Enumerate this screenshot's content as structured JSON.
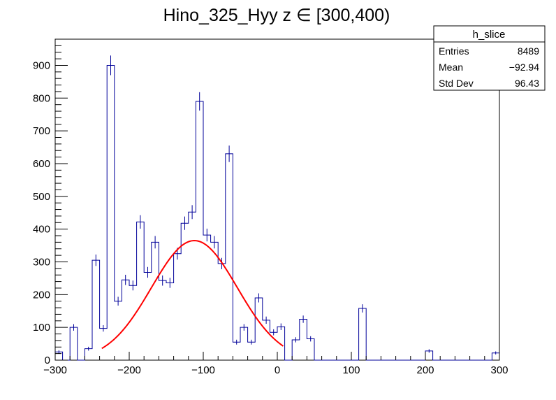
{
  "chart_data": {
    "type": "bar",
    "title": "Hino_325_Hyy z  ∈ [300,400)",
    "xlim": [
      -300,
      300
    ],
    "ylim": [
      0,
      980
    ],
    "bin_width": 10,
    "x_ticks": [
      -300,
      -200,
      -100,
      0,
      100,
      200,
      300
    ],
    "x_tick_labels": [
      "−300",
      "−200",
      "−100",
      "0",
      "100",
      "200",
      "300"
    ],
    "y_ticks": [
      0,
      100,
      200,
      300,
      400,
      500,
      600,
      700,
      800,
      900
    ],
    "y_tick_labels": [
      "0",
      "100",
      "200",
      "300",
      "400",
      "500",
      "600",
      "700",
      "800",
      "900"
    ],
    "grid": false,
    "histogram_color": "#000099",
    "fit_color": "#ff0000",
    "bins": [
      {
        "x": -295,
        "y": 25
      },
      {
        "x": -285,
        "y": 0
      },
      {
        "x": -275,
        "y": 100
      },
      {
        "x": -265,
        "y": 0
      },
      {
        "x": -255,
        "y": 35
      },
      {
        "x": -245,
        "y": 305
      },
      {
        "x": -235,
        "y": 97
      },
      {
        "x": -225,
        "y": 900
      },
      {
        "x": -215,
        "y": 180
      },
      {
        "x": -205,
        "y": 245
      },
      {
        "x": -195,
        "y": 228
      },
      {
        "x": -185,
        "y": 422
      },
      {
        "x": -175,
        "y": 268
      },
      {
        "x": -165,
        "y": 360
      },
      {
        "x": -155,
        "y": 243
      },
      {
        "x": -145,
        "y": 236
      },
      {
        "x": -135,
        "y": 325
      },
      {
        "x": -125,
        "y": 418
      },
      {
        "x": -115,
        "y": 452
      },
      {
        "x": -105,
        "y": 790
      },
      {
        "x": -95,
        "y": 382
      },
      {
        "x": -85,
        "y": 360
      },
      {
        "x": -75,
        "y": 295
      },
      {
        "x": -65,
        "y": 630
      },
      {
        "x": -55,
        "y": 55
      },
      {
        "x": -45,
        "y": 100
      },
      {
        "x": -35,
        "y": 55
      },
      {
        "x": -25,
        "y": 190
      },
      {
        "x": -15,
        "y": 122
      },
      {
        "x": -5,
        "y": 85
      },
      {
        "x": 5,
        "y": 102
      },
      {
        "x": 15,
        "y": 0
      },
      {
        "x": 25,
        "y": 62
      },
      {
        "x": 35,
        "y": 125
      },
      {
        "x": 45,
        "y": 65
      },
      {
        "x": 55,
        "y": 0
      },
      {
        "x": 65,
        "y": 0
      },
      {
        "x": 75,
        "y": 0
      },
      {
        "x": 85,
        "y": 0
      },
      {
        "x": 95,
        "y": 0
      },
      {
        "x": 105,
        "y": 0
      },
      {
        "x": 115,
        "y": 158
      },
      {
        "x": 125,
        "y": 0
      },
      {
        "x": 135,
        "y": 0
      },
      {
        "x": 145,
        "y": 0
      },
      {
        "x": 155,
        "y": 0
      },
      {
        "x": 165,
        "y": 0
      },
      {
        "x": 175,
        "y": 0
      },
      {
        "x": 185,
        "y": 0
      },
      {
        "x": 195,
        "y": 0
      },
      {
        "x": 205,
        "y": 28
      },
      {
        "x": 215,
        "y": 0
      },
      {
        "x": 225,
        "y": 0
      },
      {
        "x": 235,
        "y": 0
      },
      {
        "x": 245,
        "y": 0
      },
      {
        "x": 255,
        "y": 0
      },
      {
        "x": 265,
        "y": 0
      },
      {
        "x": 275,
        "y": 0
      },
      {
        "x": 285,
        "y": 0
      },
      {
        "x": 295,
        "y": 22
      }
    ],
    "fit": {
      "type": "gaussian",
      "amplitude": 365,
      "mean": -112,
      "sigma": 58,
      "x_range": [
        -237,
        8
      ]
    }
  },
  "stats_box": {
    "name": "h_slice",
    "rows": [
      {
        "label": "Entries",
        "value": "8489"
      },
      {
        "label": "Mean",
        "value": "−92.94"
      },
      {
        "label": "Std Dev",
        "value": "96.43"
      }
    ]
  }
}
